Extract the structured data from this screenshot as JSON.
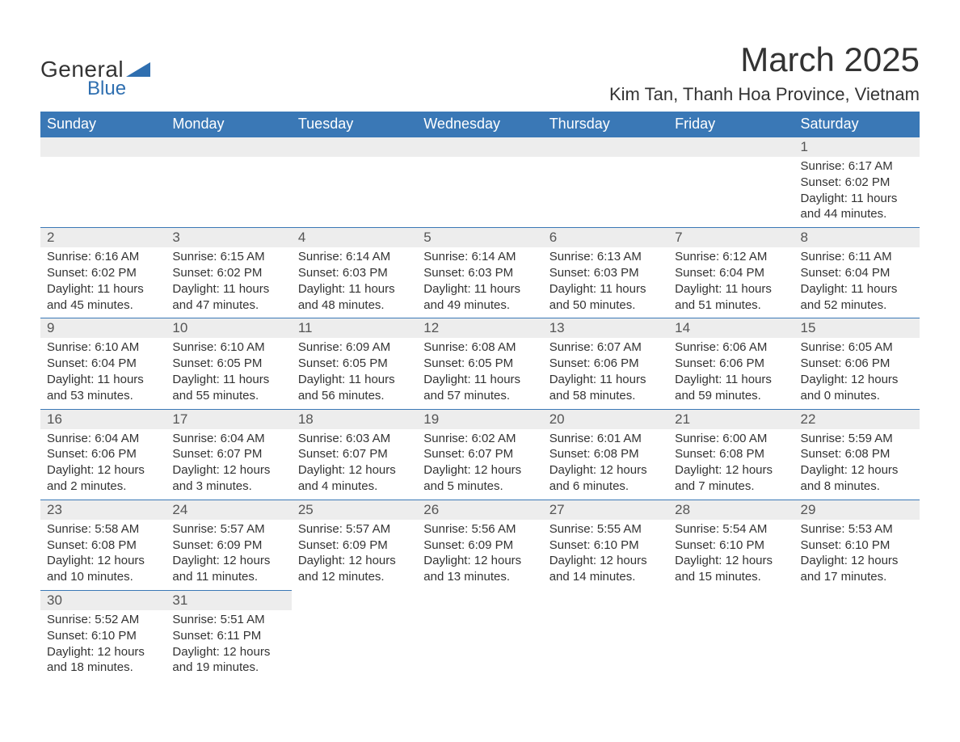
{
  "logo": {
    "general": "General",
    "blue": "Blue",
    "accent": "#2f6fb0"
  },
  "title": {
    "month": "March 2025",
    "location": "Kim Tan, Thanh Hoa Province, Vietnam"
  },
  "colors": {
    "header_bg": "#3a78b6",
    "header_text": "#ffffff",
    "daynum_bg": "#ededed",
    "rule": "#3a78b6",
    "text": "#333333"
  },
  "weekdays": [
    "Sunday",
    "Monday",
    "Tuesday",
    "Wednesday",
    "Thursday",
    "Friday",
    "Saturday"
  ],
  "weeks": [
    [
      null,
      null,
      null,
      null,
      null,
      null,
      {
        "n": "1",
        "sr": "Sunrise: 6:17 AM",
        "ss": "Sunset: 6:02 PM",
        "dl": "Daylight: 11 hours and 44 minutes."
      }
    ],
    [
      {
        "n": "2",
        "sr": "Sunrise: 6:16 AM",
        "ss": "Sunset: 6:02 PM",
        "dl": "Daylight: 11 hours and 45 minutes."
      },
      {
        "n": "3",
        "sr": "Sunrise: 6:15 AM",
        "ss": "Sunset: 6:02 PM",
        "dl": "Daylight: 11 hours and 47 minutes."
      },
      {
        "n": "4",
        "sr": "Sunrise: 6:14 AM",
        "ss": "Sunset: 6:03 PM",
        "dl": "Daylight: 11 hours and 48 minutes."
      },
      {
        "n": "5",
        "sr": "Sunrise: 6:14 AM",
        "ss": "Sunset: 6:03 PM",
        "dl": "Daylight: 11 hours and 49 minutes."
      },
      {
        "n": "6",
        "sr": "Sunrise: 6:13 AM",
        "ss": "Sunset: 6:03 PM",
        "dl": "Daylight: 11 hours and 50 minutes."
      },
      {
        "n": "7",
        "sr": "Sunrise: 6:12 AM",
        "ss": "Sunset: 6:04 PM",
        "dl": "Daylight: 11 hours and 51 minutes."
      },
      {
        "n": "8",
        "sr": "Sunrise: 6:11 AM",
        "ss": "Sunset: 6:04 PM",
        "dl": "Daylight: 11 hours and 52 minutes."
      }
    ],
    [
      {
        "n": "9",
        "sr": "Sunrise: 6:10 AM",
        "ss": "Sunset: 6:04 PM",
        "dl": "Daylight: 11 hours and 53 minutes."
      },
      {
        "n": "10",
        "sr": "Sunrise: 6:10 AM",
        "ss": "Sunset: 6:05 PM",
        "dl": "Daylight: 11 hours and 55 minutes."
      },
      {
        "n": "11",
        "sr": "Sunrise: 6:09 AM",
        "ss": "Sunset: 6:05 PM",
        "dl": "Daylight: 11 hours and 56 minutes."
      },
      {
        "n": "12",
        "sr": "Sunrise: 6:08 AM",
        "ss": "Sunset: 6:05 PM",
        "dl": "Daylight: 11 hours and 57 minutes."
      },
      {
        "n": "13",
        "sr": "Sunrise: 6:07 AM",
        "ss": "Sunset: 6:06 PM",
        "dl": "Daylight: 11 hours and 58 minutes."
      },
      {
        "n": "14",
        "sr": "Sunrise: 6:06 AM",
        "ss": "Sunset: 6:06 PM",
        "dl": "Daylight: 11 hours and 59 minutes."
      },
      {
        "n": "15",
        "sr": "Sunrise: 6:05 AM",
        "ss": "Sunset: 6:06 PM",
        "dl": "Daylight: 12 hours and 0 minutes."
      }
    ],
    [
      {
        "n": "16",
        "sr": "Sunrise: 6:04 AM",
        "ss": "Sunset: 6:06 PM",
        "dl": "Daylight: 12 hours and 2 minutes."
      },
      {
        "n": "17",
        "sr": "Sunrise: 6:04 AM",
        "ss": "Sunset: 6:07 PM",
        "dl": "Daylight: 12 hours and 3 minutes."
      },
      {
        "n": "18",
        "sr": "Sunrise: 6:03 AM",
        "ss": "Sunset: 6:07 PM",
        "dl": "Daylight: 12 hours and 4 minutes."
      },
      {
        "n": "19",
        "sr": "Sunrise: 6:02 AM",
        "ss": "Sunset: 6:07 PM",
        "dl": "Daylight: 12 hours and 5 minutes."
      },
      {
        "n": "20",
        "sr": "Sunrise: 6:01 AM",
        "ss": "Sunset: 6:08 PM",
        "dl": "Daylight: 12 hours and 6 minutes."
      },
      {
        "n": "21",
        "sr": "Sunrise: 6:00 AM",
        "ss": "Sunset: 6:08 PM",
        "dl": "Daylight: 12 hours and 7 minutes."
      },
      {
        "n": "22",
        "sr": "Sunrise: 5:59 AM",
        "ss": "Sunset: 6:08 PM",
        "dl": "Daylight: 12 hours and 8 minutes."
      }
    ],
    [
      {
        "n": "23",
        "sr": "Sunrise: 5:58 AM",
        "ss": "Sunset: 6:08 PM",
        "dl": "Daylight: 12 hours and 10 minutes."
      },
      {
        "n": "24",
        "sr": "Sunrise: 5:57 AM",
        "ss": "Sunset: 6:09 PM",
        "dl": "Daylight: 12 hours and 11 minutes."
      },
      {
        "n": "25",
        "sr": "Sunrise: 5:57 AM",
        "ss": "Sunset: 6:09 PM",
        "dl": "Daylight: 12 hours and 12 minutes."
      },
      {
        "n": "26",
        "sr": "Sunrise: 5:56 AM",
        "ss": "Sunset: 6:09 PM",
        "dl": "Daylight: 12 hours and 13 minutes."
      },
      {
        "n": "27",
        "sr": "Sunrise: 5:55 AM",
        "ss": "Sunset: 6:10 PM",
        "dl": "Daylight: 12 hours and 14 minutes."
      },
      {
        "n": "28",
        "sr": "Sunrise: 5:54 AM",
        "ss": "Sunset: 6:10 PM",
        "dl": "Daylight: 12 hours and 15 minutes."
      },
      {
        "n": "29",
        "sr": "Sunrise: 5:53 AM",
        "ss": "Sunset: 6:10 PM",
        "dl": "Daylight: 12 hours and 17 minutes."
      }
    ],
    [
      {
        "n": "30",
        "sr": "Sunrise: 5:52 AM",
        "ss": "Sunset: 6:10 PM",
        "dl": "Daylight: 12 hours and 18 minutes."
      },
      {
        "n": "31",
        "sr": "Sunrise: 5:51 AM",
        "ss": "Sunset: 6:11 PM",
        "dl": "Daylight: 12 hours and 19 minutes."
      },
      null,
      null,
      null,
      null,
      null
    ]
  ]
}
